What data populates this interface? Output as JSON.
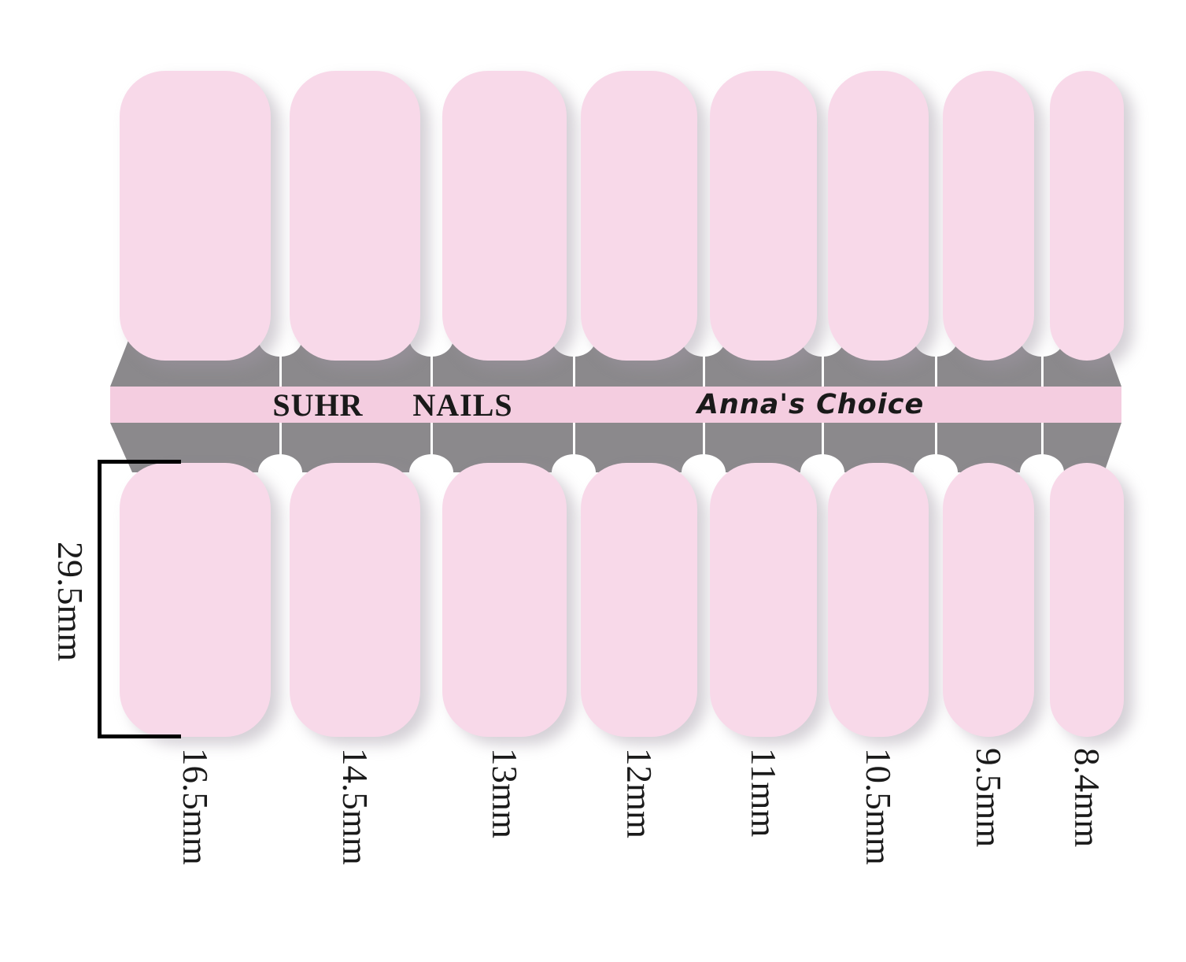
{
  "brand": {
    "word1": "SUHR",
    "word2": "NAILS",
    "collection": "Anna's Choice"
  },
  "ruler": {
    "length_label": "29.5mm"
  },
  "sizes": {
    "labels": [
      "16.5mm",
      "14.5mm",
      "13mm",
      "12mm",
      "11mm",
      "10.5mm",
      "9.5mm",
      "8.4mm"
    ]
  },
  "colors": {
    "nail_pink": "#f8d9e9",
    "stripe_pink": "#f4cde0",
    "band_gray": "#8b898c",
    "text_dark": "#1a1a1a"
  }
}
